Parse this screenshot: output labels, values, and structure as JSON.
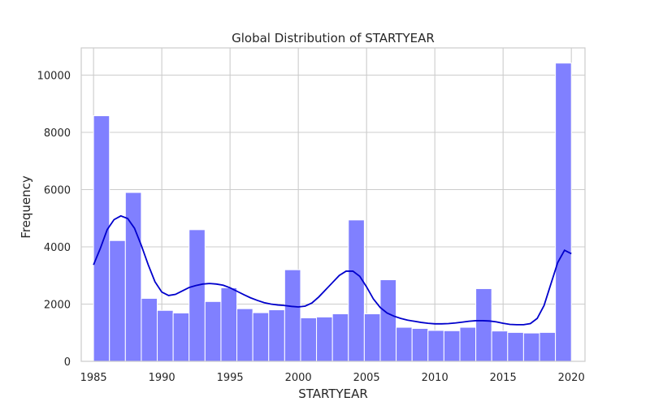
{
  "chart_data": {
    "type": "bar",
    "title": "Global Distribution of STARTYEAR",
    "xlabel": "STARTYEAR",
    "ylabel": "Frequency",
    "xlim": [
      1984.1,
      2021.0
    ],
    "ylim": [
      0,
      10950
    ],
    "grid": true,
    "x_ticks": [
      1985,
      1990,
      1995,
      2000,
      2005,
      2010,
      2015,
      2020
    ],
    "y_ticks": [
      0,
      2000,
      4000,
      6000,
      8000,
      10000
    ],
    "bin_start": 1985,
    "bin_width": 1.1667,
    "bar_color": "#8080ff",
    "bar_edge_color": "#ffffff",
    "kde_color": "#0000cc",
    "values": [
      8580,
      4220,
      5900,
      2200,
      1780,
      1690,
      4600,
      2090,
      2570,
      1840,
      1700,
      1800,
      3200,
      1520,
      1550,
      1660,
      4940,
      1660,
      2850,
      1190,
      1150,
      1080,
      1070,
      1190,
      2540,
      1060,
      1010,
      990,
      1010,
      10420
    ],
    "kde": {
      "x": [
        1985,
        1985.5,
        1986,
        1986.5,
        1987,
        1987.5,
        1988,
        1988.5,
        1989,
        1989.5,
        1990,
        1990.5,
        1991,
        1991.5,
        1992,
        1992.5,
        1993,
        1993.5,
        1994,
        1994.5,
        1995,
        1995.5,
        1996,
        1996.5,
        1997,
        1997.5,
        1998,
        1998.5,
        1999,
        1999.5,
        2000,
        2000.5,
        2001,
        2001.5,
        2002,
        2002.5,
        2003,
        2003.5,
        2004,
        2004.5,
        2005,
        2005.5,
        2006,
        2006.5,
        2007,
        2007.5,
        2008,
        2008.5,
        2009,
        2009.5,
        2010,
        2010.5,
        2011,
        2011.5,
        2012,
        2012.5,
        2013,
        2013.5,
        2014,
        2014.5,
        2015,
        2015.5,
        2016,
        2016.5,
        2017,
        2017.5,
        2018,
        2018.5,
        2019,
        2019.5,
        2020
      ],
      "y": [
        3370,
        3950,
        4600,
        4950,
        5080,
        4990,
        4650,
        4050,
        3380,
        2780,
        2420,
        2300,
        2340,
        2460,
        2580,
        2650,
        2700,
        2720,
        2700,
        2660,
        2570,
        2450,
        2330,
        2220,
        2130,
        2050,
        2000,
        1970,
        1950,
        1920,
        1900,
        1930,
        2040,
        2250,
        2500,
        2750,
        3000,
        3150,
        3150,
        2970,
        2600,
        2180,
        1880,
        1690,
        1580,
        1500,
        1440,
        1400,
        1360,
        1330,
        1310,
        1310,
        1320,
        1340,
        1370,
        1400,
        1420,
        1420,
        1410,
        1380,
        1330,
        1290,
        1280,
        1280,
        1320,
        1500,
        1950,
        2700,
        3450,
        3880,
        3760
      ]
    }
  }
}
